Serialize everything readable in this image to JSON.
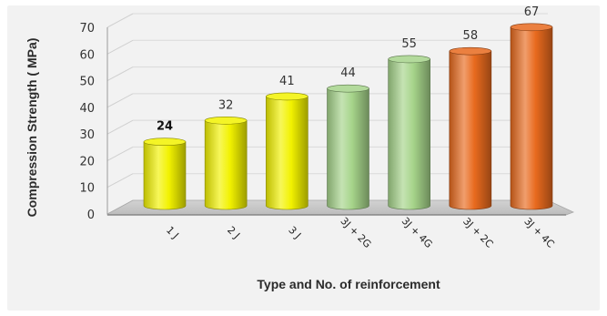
{
  "chart_data": {
    "type": "bar",
    "title": "",
    "xlabel": "Type and No. of reinforcement",
    "ylabel": "Compression Strength ( MPa)",
    "ylim": [
      0,
      70
    ],
    "yticks": [
      0,
      10,
      20,
      30,
      40,
      50,
      60,
      70
    ],
    "grid": true,
    "legend": "none",
    "categories": [
      "1 J",
      "2 J",
      "3 J",
      "3J + 2G",
      "3J + 4G",
      "3J + 2C",
      "3J + 4C"
    ],
    "values": [
      24,
      32,
      41,
      44,
      55,
      58,
      67
    ],
    "value_labels": [
      "24",
      "32",
      "41",
      "44",
      "55",
      "58",
      "67"
    ],
    "bar_colors": [
      "#f2f200",
      "#f2f200",
      "#f2f200",
      "#a6d48a",
      "#a6d48a",
      "#e86a1e",
      "#e86a1e"
    ],
    "style": "3d-cylinder"
  }
}
